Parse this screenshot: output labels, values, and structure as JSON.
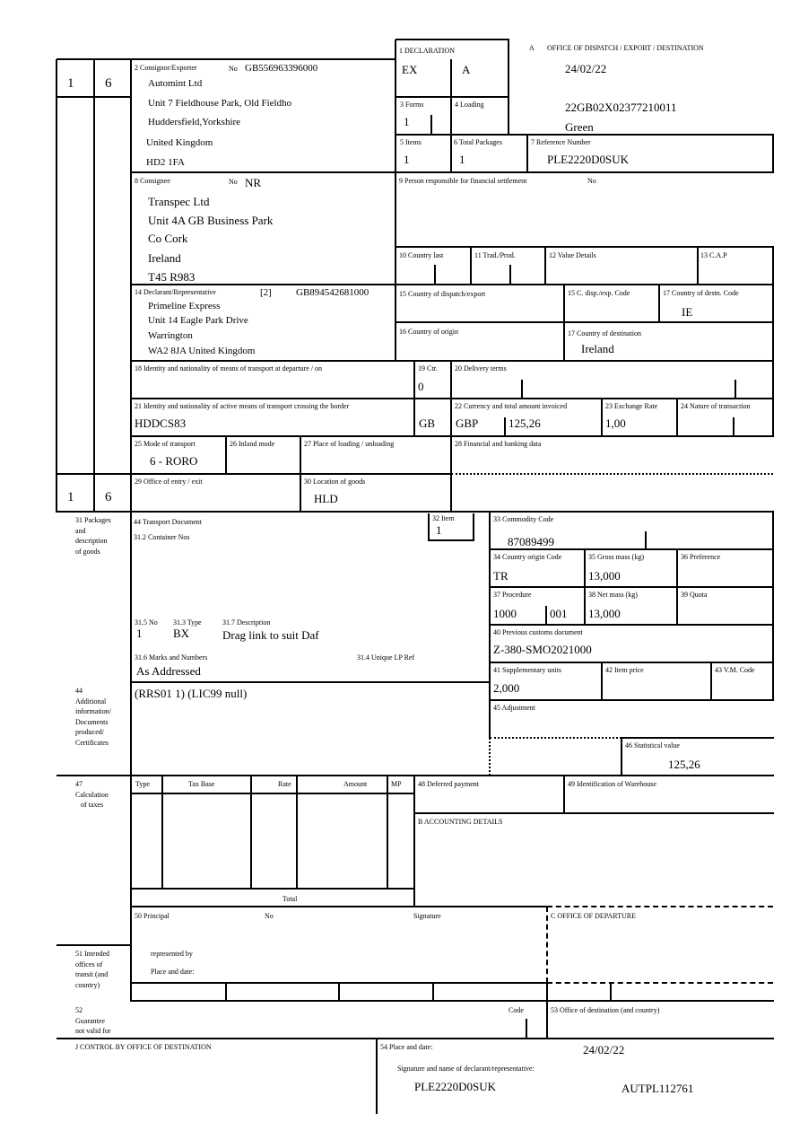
{
  "header": {
    "office_letter": "A",
    "office_title": "OFFICE OF DISPATCH / EXPORT / DESTINATION",
    "date": "24/02/22",
    "mrn": "22GB02X02377210011",
    "route": "Green",
    "copy_numbers": [
      "1",
      "6"
    ]
  },
  "box1": {
    "label": "1 DECLARATION",
    "type": "EX",
    "subtype": "A"
  },
  "box2": {
    "label": "2 Consignor/Exporter",
    "no_label": "No",
    "no": "GB556963396000",
    "lines": [
      "Automint Ltd",
      "Unit 7 Fieldhouse Park, Old Fieldho",
      "Huddersfield,Yorkshire",
      "United Kingdom",
      "HD2 1FA"
    ]
  },
  "box3": {
    "label": "3 Forms",
    "value": "1"
  },
  "box4": {
    "label": "4 Loading"
  },
  "box5": {
    "label": "5 Items",
    "value": "1"
  },
  "box6": {
    "label": "6 Total Packages",
    "value": "1"
  },
  "box7": {
    "label": "7 Reference Number",
    "value": "PLE2220D0SUK"
  },
  "box8": {
    "label": "8 Consignee",
    "no_label": "No",
    "no": "NR",
    "lines": [
      "Transpec Ltd",
      "Unit 4A GB Business Park",
      "Co Cork",
      "Ireland",
      "T45 R983"
    ]
  },
  "box9": {
    "label": "9 Person responsible for financial settlement",
    "no_label": "No"
  },
  "box10": {
    "label": "10 Country last"
  },
  "box11": {
    "label": "11 Trad./Prod."
  },
  "box12": {
    "label": "12 Value Details"
  },
  "box13": {
    "label": "13 C.A.P"
  },
  "box14": {
    "label": "14 Declarant/Representative",
    "status": "[2]",
    "no": "GB894542681000",
    "lines": [
      "Primeline Express",
      "Unit 14 Eagle Park Drive",
      "Warrington",
      "WA2 8JA United Kingdom"
    ]
  },
  "box15": {
    "label": "15 Country of dispatch/export"
  },
  "box15a": {
    "label": "15 C. disp./exp. Code"
  },
  "box17a": {
    "label": "17 Country of destn. Code",
    "value": "IE"
  },
  "box16": {
    "label": "16 Country of origin"
  },
  "box17": {
    "label": "17 Country of destination",
    "value": "Ireland"
  },
  "box18": {
    "label": "18 Identity and nationality of means of transport at departure / on"
  },
  "box19": {
    "label": "19 Ctr.",
    "value": "0"
  },
  "box20": {
    "label": "20 Delivery terms"
  },
  "box21": {
    "label": "21 Identity and nationality of active means of transport crossing the border",
    "value": "HDDCS83",
    "nationality": "GB"
  },
  "box22": {
    "label": "22 Currency and total amount invoiced",
    "currency": "GBP",
    "amount": "125,26"
  },
  "box23": {
    "label": "23 Exchange Rate",
    "value": "1,00"
  },
  "box24": {
    "label": "24 Nature of transaction"
  },
  "box25": {
    "label": "25 Mode of transport",
    "value": "6 - RORO"
  },
  "box26": {
    "label": "26 Inland mode"
  },
  "box27": {
    "label": "27 Place of loading / unloading"
  },
  "box28": {
    "label": "28 Financial and banking data"
  },
  "box29": {
    "label": "29 Office of entry / exit"
  },
  "box30": {
    "label": "30 Location of goods",
    "value": "HLD"
  },
  "box31": {
    "label": "31 Packages\nand\ndescription\nof goods",
    "transport_doc_label": "44 Transport Document",
    "container_label": "31.2 Container Nos",
    "no_label": "31.5 No",
    "no": "1",
    "type_label": "31.3 Type",
    "type": "BX",
    "desc_label": "31.7 Description",
    "desc": "Drag link to suit Daf",
    "marks_label": "31.6 Marks and Numbers",
    "marks": "As Addressed",
    "lp_ref_label": "31.4 Unique LP Ref"
  },
  "box32": {
    "label": "32 Item",
    "value": "1"
  },
  "box33": {
    "label": "33 Commodity Code",
    "value": "87089499"
  },
  "box34": {
    "label": "34 Country origin Code",
    "value": "TR"
  },
  "box35": {
    "label": "35 Gross mass (kg)",
    "value": "13,000"
  },
  "box36": {
    "label": "36 Preference"
  },
  "box37": {
    "label": "37 Procedure",
    "value": "1000",
    "additional": "001"
  },
  "box38": {
    "label": "38 Net mass (kg)",
    "value": "13,000"
  },
  "box39": {
    "label": "39 Quota"
  },
  "box40": {
    "label": "40 Previous customs document",
    "value": "Z-380-SMO2021000"
  },
  "box41": {
    "label": "41 Supplementary units",
    "value": "2,000"
  },
  "box42": {
    "label": "42 Item price"
  },
  "box43": {
    "label": "43 V.M. Code"
  },
  "box44": {
    "label": "44\nAdditional\ninformation/\nDocuments\nproduced/\nCertificates",
    "value": "(RRS01 1) (LIC99 null)"
  },
  "box45": {
    "label": "45 Adjustment"
  },
  "box46": {
    "label": "46 Statistical value",
    "value": "125,26"
  },
  "box47": {
    "label": "47\nCalculation\n   of taxes",
    "columns": [
      "Type",
      "Tax Base",
      "Rate",
      "Amount",
      "MP"
    ],
    "total_label": "Total"
  },
  "box48": {
    "label": "48 Deferred payment"
  },
  "box49": {
    "label": "49 Identification of Warehouse"
  },
  "boxB": {
    "label": "B ACCOUNTING DETAILS"
  },
  "box50": {
    "label": "50 Principal",
    "no_label": "No",
    "signature_label": "Signature",
    "represented_label": "represented by",
    "place_label": "Place and date:"
  },
  "boxC": {
    "label": "C OFFICE OF DEPARTURE"
  },
  "box51": {
    "label": "51 Intended\noffices of\ntransit (and\ncountry)"
  },
  "box52": {
    "label": "52\nGuarantee\nnot valid for",
    "code_label": "Code"
  },
  "box53": {
    "label": "53 Office of destination (and country)"
  },
  "boxJ": {
    "label": "J CONTROL BY OFFICE OF DESTINATION"
  },
  "box54": {
    "label": "54 Place and date:",
    "date": "24/02/22",
    "signature_label": "Signature and name of declarant/representative:",
    "name": "PLE2220D0SUK",
    "auth": "AUTPL112761"
  }
}
